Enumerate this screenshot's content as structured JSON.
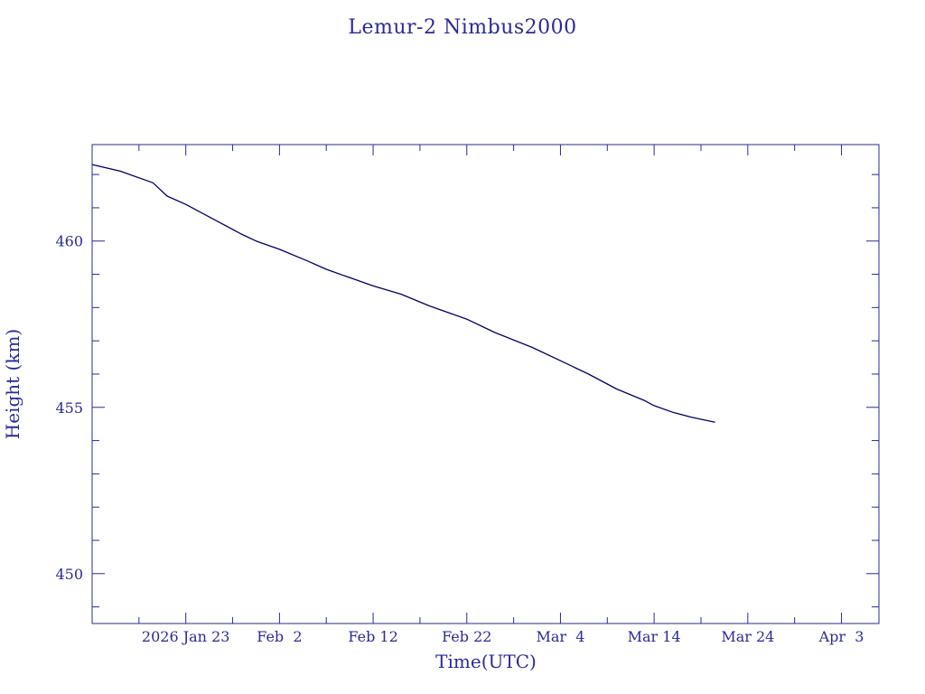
{
  "chart_data": {
    "type": "line",
    "title": "Lemur-2 Nimbus2000",
    "xlabel": "Time(UTC)",
    "ylabel": "Height (km)",
    "x_type": "date",
    "xlim": [
      "2026-01-13",
      "2026-04-07"
    ],
    "ylim": [
      448.5,
      462.9
    ],
    "x_ticks": [
      {
        "date": "2026-01-23",
        "label": "2026 Jan 23"
      },
      {
        "date": "2026-02-02",
        "label": "Feb  2"
      },
      {
        "date": "2026-02-12",
        "label": "Feb 12"
      },
      {
        "date": "2026-02-22",
        "label": "Feb 22"
      },
      {
        "date": "2026-03-04",
        "label": "Mar  4"
      },
      {
        "date": "2026-03-14",
        "label": "Mar 14"
      },
      {
        "date": "2026-03-24",
        "label": "Mar 24"
      },
      {
        "date": "2026-04-03",
        "label": "Apr  3"
      }
    ],
    "y_ticks": [
      {
        "value": 450,
        "label": "450"
      },
      {
        "value": 455,
        "label": "455"
      },
      {
        "value": 460,
        "label": "460"
      }
    ],
    "series": [
      {
        "color": "#000066",
        "points": [
          {
            "x": "2026-01-13T00:00",
            "y": 462.3
          },
          {
            "x": "2026-01-16T00:00",
            "y": 462.1
          },
          {
            "x": "2026-01-19T12:00",
            "y": 461.75
          },
          {
            "x": "2026-01-21T00:00",
            "y": 461.35
          },
          {
            "x": "2026-01-23T00:00",
            "y": 461.1
          },
          {
            "x": "2026-01-26T00:00",
            "y": 460.65
          },
          {
            "x": "2026-01-29T00:00",
            "y": 460.2
          },
          {
            "x": "2026-01-30T12:00",
            "y": 460.0
          },
          {
            "x": "2026-02-02T00:00",
            "y": 459.75
          },
          {
            "x": "2026-02-05T00:00",
            "y": 459.4
          },
          {
            "x": "2026-02-07T00:00",
            "y": 459.15
          },
          {
            "x": "2026-02-09T00:00",
            "y": 458.95
          },
          {
            "x": "2026-02-12T00:00",
            "y": 458.65
          },
          {
            "x": "2026-02-15T00:00",
            "y": 458.4
          },
          {
            "x": "2026-02-18T00:00",
            "y": 458.05
          },
          {
            "x": "2026-02-22T00:00",
            "y": 457.65
          },
          {
            "x": "2026-02-25T00:00",
            "y": 457.25
          },
          {
            "x": "2026-03-01T00:00",
            "y": 456.8
          },
          {
            "x": "2026-03-04T00:00",
            "y": 456.4
          },
          {
            "x": "2026-03-07T00:00",
            "y": 456.0
          },
          {
            "x": "2026-03-10T00:00",
            "y": 455.55
          },
          {
            "x": "2026-03-13T00:00",
            "y": 455.2
          },
          {
            "x": "2026-03-14T00:00",
            "y": 455.05
          },
          {
            "x": "2026-03-16T00:00",
            "y": 454.85
          },
          {
            "x": "2026-03-18T00:00",
            "y": 454.7
          },
          {
            "x": "2026-03-20T12:00",
            "y": 454.55
          }
        ]
      }
    ],
    "grid": false,
    "legend": "none",
    "colors": {
      "text": "#2a2a9a",
      "frame": "#2a2a9a",
      "line": "#000066",
      "background": "#ffffff"
    }
  }
}
